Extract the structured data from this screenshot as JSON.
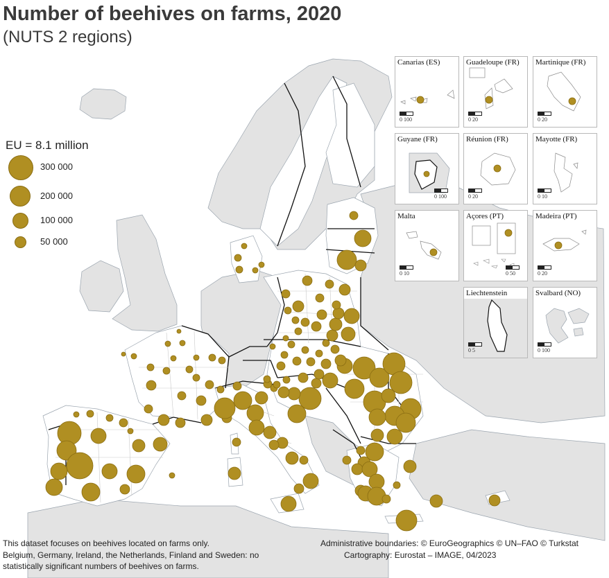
{
  "title": "Number of beehives on farms, 2020",
  "subtitle": "(NUTS 2 regions)",
  "colors": {
    "sea": "#ffffff",
    "land_eu": "#ffffff",
    "land_other": "#e3e3e3",
    "border": "#111111",
    "symbol": "#b08f22"
  },
  "legend": {
    "title": "EU = 8.1 million",
    "items": [
      {
        "label": "300 000",
        "value": 300000
      },
      {
        "label": "200 000",
        "value": 200000
      },
      {
        "label": "100 000",
        "value": 100000
      },
      {
        "label": "50 000",
        "value": 50000
      }
    ]
  },
  "insets": [
    {
      "label": "Canarias (ES)",
      "scale": "0   100"
    },
    {
      "label": "Guadeloupe (FR)",
      "scale": "0   20"
    },
    {
      "label": "Martinique (FR)",
      "scale": "0   20"
    },
    {
      "label": "Guyane (FR)",
      "scale": "0   100"
    },
    {
      "label": "Réunion (FR)",
      "scale": "0   20"
    },
    {
      "label": "Mayotte (FR)",
      "scale": "0   10"
    },
    {
      "label": "Malta",
      "scale": "0   10"
    },
    {
      "label": "Açores (PT)",
      "scale": "0   50"
    },
    {
      "label": "Madeira (PT)",
      "scale": "0   20"
    },
    {
      "label": "Liechtenstein",
      "scale": "0   5"
    },
    {
      "label": "Svalbard (NO)",
      "scale": "0   100"
    }
  ],
  "footer": {
    "note_line1": "This dataset focuses on beehives located on farms only.",
    "note_line2": "Belgium, Germany, Ireland, the Netherlands, Finland and Sweden: no",
    "note_line3": "statistically significant numbers of beehives on farms.",
    "credit_line1": "Administrative boundaries: © EuroGeographics © UN–FAO © Turkstat",
    "credit_line2": "Cartography: Eurostat – IMAGE, 04/2023"
  }
}
